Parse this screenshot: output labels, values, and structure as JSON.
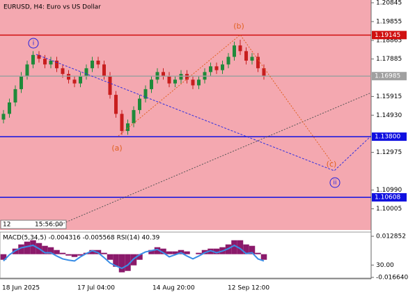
{
  "chart_data": {
    "type": "candlestick",
    "title": "EURUSD, H4:  Euro vs US Dollar",
    "open": [
      1.147,
      1.15,
      1.156,
      1.163,
      1.17,
      1.176,
      1.181,
      1.179,
      1.176,
      1.178,
      1.174,
      1.171,
      1.168,
      1.166,
      1.17,
      1.174,
      1.178,
      1.176,
      1.17,
      1.16,
      1.15,
      1.141,
      1.145,
      1.152,
      1.158,
      1.163,
      1.168,
      1.172,
      1.17,
      1.166,
      1.168,
      1.171,
      1.168,
      1.165,
      1.168,
      1.172,
      1.175,
      1.173,
      1.176,
      1.18,
      1.186,
      1.183,
      1.178,
      1.18,
      1.174
    ],
    "high": [
      1.152,
      1.158,
      1.165,
      1.172,
      1.178,
      1.183,
      1.183,
      1.181,
      1.18,
      1.18,
      1.176,
      1.173,
      1.17,
      1.172,
      1.176,
      1.18,
      1.18,
      1.178,
      1.172,
      1.162,
      1.152,
      1.147,
      1.154,
      1.16,
      1.165,
      1.17,
      1.174,
      1.174,
      1.172,
      1.17,
      1.173,
      1.173,
      1.17,
      1.17,
      1.174,
      1.177,
      1.177,
      1.178,
      1.182,
      1.188,
      1.189,
      1.185,
      1.182,
      1.182,
      1.176
    ],
    "low": [
      1.145,
      1.148,
      1.154,
      1.161,
      1.168,
      1.174,
      1.177,
      1.174,
      1.174,
      1.172,
      1.169,
      1.166,
      1.164,
      1.164,
      1.168,
      1.172,
      1.174,
      1.168,
      1.158,
      1.148,
      1.139,
      1.139,
      1.143,
      1.15,
      1.156,
      1.161,
      1.166,
      1.168,
      1.164,
      1.164,
      1.166,
      1.166,
      1.163,
      1.163,
      1.166,
      1.17,
      1.171,
      1.171,
      1.174,
      1.178,
      1.181,
      1.176,
      1.176,
      1.172,
      1.168
    ],
    "close": [
      1.15,
      1.156,
      1.163,
      1.17,
      1.176,
      1.181,
      1.179,
      1.176,
      1.178,
      1.174,
      1.171,
      1.168,
      1.166,
      1.17,
      1.174,
      1.178,
      1.176,
      1.17,
      1.16,
      1.15,
      1.141,
      1.145,
      1.152,
      1.158,
      1.163,
      1.168,
      1.172,
      1.17,
      1.166,
      1.168,
      1.171,
      1.168,
      1.165,
      1.168,
      1.172,
      1.175,
      1.173,
      1.176,
      1.18,
      1.186,
      1.183,
      1.178,
      1.18,
      1.174,
      1.17
    ],
    "up_color": "#1f8a3a",
    "down_color": "#c81e1e",
    "background": "#f4a8b0",
    "ylim": [
      1.0889,
      1.2099
    ],
    "yticks": [
      {
        "value": 1.20845,
        "label": "1.20845"
      },
      {
        "value": 1.19855,
        "label": "1.19855"
      },
      {
        "value": 1.18865,
        "label": "1.18865"
      },
      {
        "value": 1.17885,
        "label": "1.17885"
      },
      {
        "value": 1.15915,
        "label": "1.15915"
      },
      {
        "value": 1.1493,
        "label": "1.14930"
      },
      {
        "value": 1.12975,
        "label": "1.12975"
      },
      {
        "value": 1.1099,
        "label": "1.10990"
      },
      {
        "value": 1.10005,
        "label": "1.10005"
      }
    ],
    "levels": [
      {
        "value": 1.19145,
        "label": "1.19145",
        "color": "#d01010"
      },
      {
        "value": 1.16985,
        "label": "1.16985",
        "color": "#a0a0a0"
      },
      {
        "value": 1.138,
        "label": "1.13800",
        "color": "#1010e0"
      },
      {
        "value": 1.10608,
        "label": "1.10608",
        "color": "#1010e0"
      }
    ],
    "x_labels": [
      "18 Jun 2025",
      "17 Jul 04:00",
      "14 Aug 20:00",
      "12 Sep 12:00"
    ],
    "waves": [
      "i",
      "(a)",
      "(b)",
      "(c)",
      "ii"
    ],
    "toolbar": [
      "12",
      "15:56:00"
    ],
    "indicator": {
      "title": "MACD(5,34,5) -0.004316 -0.005568 RSI(14) 40.39",
      "macd": [
        -0.004,
        0.0,
        0.004,
        0.007,
        0.009,
        0.01,
        0.008,
        0.006,
        0.005,
        0.003,
        0.001,
        -0.001,
        -0.002,
        -0.001,
        0.001,
        0.003,
        0.003,
        0.001,
        -0.004,
        -0.009,
        -0.013,
        -0.012,
        -0.008,
        -0.004,
        0.0,
        0.003,
        0.005,
        0.004,
        0.002,
        0.002,
        0.003,
        0.002,
        0.0,
        0.001,
        0.003,
        0.004,
        0.004,
        0.005,
        0.007,
        0.01,
        0.01,
        0.007,
        0.006,
        0.001,
        -0.004
      ],
      "macd_color": "#8b1a6b",
      "ylim": [
        -0.01664,
        0.012852
      ],
      "yticks": [
        {
          "value": 0.012852,
          "label": "0.012852"
        },
        {
          "value": -0.01664,
          "label": "-0.016640"
        }
      ],
      "rsi": [
        40,
        55,
        65,
        72,
        75,
        78,
        70,
        60,
        60,
        52,
        45,
        42,
        40,
        50,
        58,
        65,
        60,
        48,
        35,
        28,
        22,
        30,
        45,
        55,
        62,
        65,
        68,
        60,
        50,
        55,
        60,
        52,
        45,
        52,
        60,
        65,
        60,
        64,
        70,
        78,
        70,
        58,
        60,
        45,
        40
      ],
      "rsi_color": "#3a8ee6",
      "rsi_ylim": [
        0,
        100
      ],
      "rsi_ticks": [
        {
          "value": 30,
          "label": "30.00"
        }
      ]
    }
  }
}
